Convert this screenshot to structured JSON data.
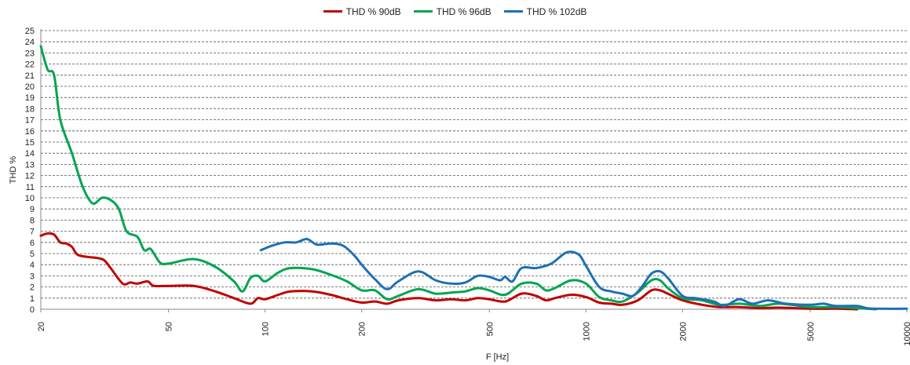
{
  "chart_data": {
    "type": "line",
    "title": "",
    "xlabel": "F [Hz]",
    "ylabel": "THD %",
    "x_scale": "log",
    "xlim": [
      20,
      10000
    ],
    "ylim": [
      0,
      25
    ],
    "x_ticks": [
      20,
      50,
      100,
      200,
      500,
      1000,
      2000,
      5000,
      10000
    ],
    "y_ticks": [
      0,
      1,
      2,
      3,
      4,
      5,
      6,
      7,
      8,
      9,
      10,
      11,
      12,
      13,
      14,
      15,
      16,
      17,
      18,
      19,
      20,
      21,
      22,
      23,
      24,
      25
    ],
    "grid": "horizontal dashed",
    "legend_position": "top-center",
    "series": [
      {
        "name": "THD % 90dB",
        "color": "#c00000",
        "points": [
          [
            20,
            6.6
          ],
          [
            21,
            6.8
          ],
          [
            22,
            6.7
          ],
          [
            23,
            6.0
          ],
          [
            24,
            5.9
          ],
          [
            25,
            5.6
          ],
          [
            26,
            4.9
          ],
          [
            28,
            4.7
          ],
          [
            30,
            4.6
          ],
          [
            31.5,
            4.4
          ],
          [
            33,
            3.7
          ],
          [
            36,
            2.3
          ],
          [
            38,
            2.4
          ],
          [
            40,
            2.3
          ],
          [
            43,
            2.5
          ],
          [
            45,
            2.1
          ],
          [
            50,
            2.1
          ],
          [
            60,
            2.1
          ],
          [
            70,
            1.6
          ],
          [
            80,
            1.0
          ],
          [
            90,
            0.5
          ],
          [
            95,
            1.0
          ],
          [
            100,
            0.9
          ],
          [
            110,
            1.3
          ],
          [
            120,
            1.6
          ],
          [
            140,
            1.6
          ],
          [
            160,
            1.3
          ],
          [
            180,
            0.9
          ],
          [
            200,
            0.6
          ],
          [
            220,
            0.7
          ],
          [
            240,
            0.5
          ],
          [
            260,
            0.8
          ],
          [
            300,
            1.0
          ],
          [
            340,
            0.8
          ],
          [
            380,
            0.9
          ],
          [
            420,
            0.8
          ],
          [
            460,
            1.0
          ],
          [
            500,
            0.9
          ],
          [
            560,
            0.7
          ],
          [
            630,
            1.4
          ],
          [
            700,
            1.2
          ],
          [
            750,
            0.8
          ],
          [
            800,
            1.0
          ],
          [
            900,
            1.3
          ],
          [
            1000,
            1.1
          ],
          [
            1100,
            0.6
          ],
          [
            1200,
            0.5
          ],
          [
            1300,
            0.4
          ],
          [
            1450,
            0.8
          ],
          [
            1600,
            1.7
          ],
          [
            1700,
            1.7
          ],
          [
            1800,
            1.4
          ],
          [
            2000,
            0.8
          ],
          [
            2300,
            0.4
          ],
          [
            2600,
            0.2
          ],
          [
            3000,
            0.2
          ],
          [
            3500,
            0.1
          ],
          [
            4000,
            0.15
          ],
          [
            5000,
            0.05
          ],
          [
            6000,
            0.05
          ],
          [
            7000,
            0.0
          ]
        ]
      },
      {
        "name": "THD % 96dB",
        "color": "#00a550",
        "points": [
          [
            20,
            23.6
          ],
          [
            21,
            21.5
          ],
          [
            22,
            21.0
          ],
          [
            23,
            17.0
          ],
          [
            25,
            14.0
          ],
          [
            27,
            11.0
          ],
          [
            29,
            9.5
          ],
          [
            31,
            10.0
          ],
          [
            33,
            9.8
          ],
          [
            35,
            9.0
          ],
          [
            37,
            7.0
          ],
          [
            40,
            6.5
          ],
          [
            42,
            5.3
          ],
          [
            44,
            5.4
          ],
          [
            47,
            4.2
          ],
          [
            50,
            4.1
          ],
          [
            60,
            4.5
          ],
          [
            70,
            3.8
          ],
          [
            80,
            2.5
          ],
          [
            85,
            1.6
          ],
          [
            90,
            2.8
          ],
          [
            95,
            3.0
          ],
          [
            100,
            2.5
          ],
          [
            110,
            3.3
          ],
          [
            120,
            3.7
          ],
          [
            140,
            3.6
          ],
          [
            160,
            3.1
          ],
          [
            180,
            2.5
          ],
          [
            200,
            1.7
          ],
          [
            220,
            1.7
          ],
          [
            240,
            0.9
          ],
          [
            260,
            1.2
          ],
          [
            300,
            1.8
          ],
          [
            340,
            1.4
          ],
          [
            380,
            1.5
          ],
          [
            420,
            1.6
          ],
          [
            460,
            1.9
          ],
          [
            500,
            1.7
          ],
          [
            560,
            1.3
          ],
          [
            630,
            2.3
          ],
          [
            700,
            2.3
          ],
          [
            750,
            1.7
          ],
          [
            800,
            1.9
          ],
          [
            900,
            2.6
          ],
          [
            1000,
            2.3
          ],
          [
            1100,
            1.1
          ],
          [
            1200,
            0.8
          ],
          [
            1300,
            0.7
          ],
          [
            1450,
            1.5
          ],
          [
            1600,
            2.6
          ],
          [
            1700,
            2.6
          ],
          [
            1800,
            1.9
          ],
          [
            2000,
            1.0
          ],
          [
            2300,
            0.8
          ],
          [
            2600,
            0.4
          ],
          [
            3000,
            0.5
          ],
          [
            3500,
            0.3
          ],
          [
            4000,
            0.5
          ],
          [
            5000,
            0.2
          ],
          [
            6000,
            0.2
          ],
          [
            7000,
            0.1
          ],
          [
            8000,
            0.0
          ]
        ]
      },
      {
        "name": "THD % 102dB",
        "color": "#1f6fb5",
        "points": [
          [
            97,
            5.3
          ],
          [
            105,
            5.7
          ],
          [
            115,
            6.0
          ],
          [
            125,
            6.0
          ],
          [
            135,
            6.3
          ],
          [
            145,
            5.8
          ],
          [
            160,
            5.9
          ],
          [
            175,
            5.7
          ],
          [
            190,
            4.8
          ],
          [
            200,
            4.0
          ],
          [
            220,
            2.7
          ],
          [
            240,
            1.8
          ],
          [
            260,
            2.5
          ],
          [
            300,
            3.4
          ],
          [
            340,
            2.6
          ],
          [
            380,
            2.3
          ],
          [
            420,
            2.4
          ],
          [
            460,
            3.0
          ],
          [
            500,
            2.9
          ],
          [
            540,
            2.6
          ],
          [
            560,
            2.9
          ],
          [
            590,
            2.5
          ],
          [
            630,
            3.7
          ],
          [
            700,
            3.7
          ],
          [
            780,
            4.1
          ],
          [
            870,
            5.1
          ],
          [
            950,
            4.9
          ],
          [
            1000,
            3.9
          ],
          [
            1100,
            2.0
          ],
          [
            1200,
            1.6
          ],
          [
            1300,
            1.4
          ],
          [
            1400,
            1.2
          ],
          [
            1500,
            2.1
          ],
          [
            1600,
            3.2
          ],
          [
            1700,
            3.4
          ],
          [
            1800,
            2.8
          ],
          [
            2000,
            1.2
          ],
          [
            2200,
            1.0
          ],
          [
            2500,
            0.7
          ],
          [
            2700,
            0.3
          ],
          [
            3000,
            0.9
          ],
          [
            3300,
            0.5
          ],
          [
            3700,
            0.8
          ],
          [
            4200,
            0.5
          ],
          [
            5000,
            0.4
          ],
          [
            5500,
            0.5
          ],
          [
            6000,
            0.3
          ],
          [
            7000,
            0.3
          ],
          [
            7500,
            0.1
          ],
          [
            8000,
            0.05
          ],
          [
            10000,
            0.05
          ]
        ]
      }
    ]
  }
}
